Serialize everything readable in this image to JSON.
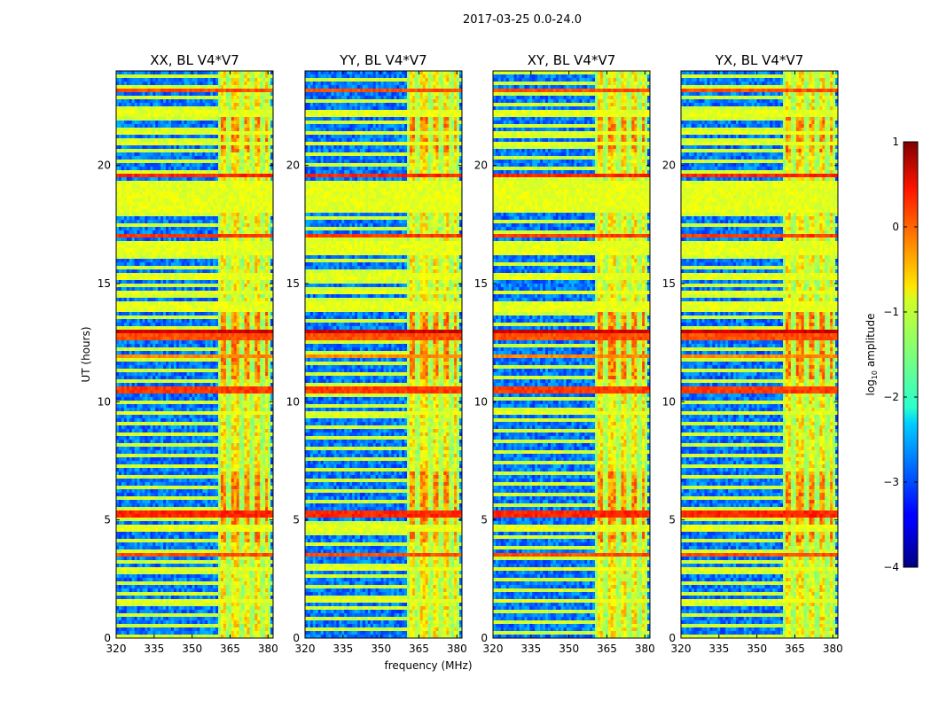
{
  "chart_data": {
    "type": "heatmap",
    "suptitle": "2017-03-25 0.0-24.0",
    "xlabel": "frequency (MHz)",
    "ylabel": "UT (hours)",
    "xlim": [
      320,
      382
    ],
    "ylim": [
      0,
      24
    ],
    "xticks": [
      320,
      335,
      350,
      365,
      380
    ],
    "yticks": [
      0,
      5,
      10,
      15,
      20
    ],
    "colorbar": {
      "label_prefix": "log",
      "label_sub": "10",
      "label_suffix": " amplitude",
      "colormap": "jet",
      "range": [
        -4,
        1
      ],
      "ticks": [
        1,
        0,
        -1,
        -2,
        -3,
        -4
      ],
      "tick_labels": [
        "1",
        "0",
        "−1",
        "−2",
        "−3",
        "−4"
      ]
    },
    "panels": [
      {
        "title": "XX, BL V4*V7"
      },
      {
        "title": "YY, BL V4*V7"
      },
      {
        "title": "XY, BL V4*V7"
      },
      {
        "title": "YX, BL V4*V7"
      }
    ],
    "rfi_band_mhz": [
      360.5,
      380.5
    ],
    "active_channels_mhz": [
      [
        361.5,
        363.8
      ],
      [
        365.5,
        368.5
      ],
      [
        370.2,
        372.8
      ],
      [
        374.6,
        377.0
      ],
      [
        378.6,
        380.2
      ]
    ],
    "broadband_rfi_rows_ut": [
      {
        "t0": 23.1,
        "t1": 23.25,
        "level": 0.0
      },
      {
        "t0": 22.0,
        "t1": 22.4,
        "level": -1.0
      },
      {
        "t0": 21.25,
        "t1": 21.45,
        "level": -1.0
      },
      {
        "t0": 20.85,
        "t1": 21.0,
        "level": -1.0
      },
      {
        "t0": 19.5,
        "t1": 19.7,
        "level": 0.2
      },
      {
        "t0": 18.95,
        "t1": 19.4,
        "level": -1.0
      },
      {
        "t0": 17.95,
        "t1": 18.9,
        "level": -1.0
      },
      {
        "t0": 16.9,
        "t1": 17.05,
        "level": 0.1
      },
      {
        "t0": 16.2,
        "t1": 16.85,
        "level": -1.0
      },
      {
        "t0": 15.2,
        "t1": 15.5,
        "level": -1.0
      },
      {
        "t0": 14.55,
        "t1": 14.65,
        "level": -1.0
      },
      {
        "t0": 13.85,
        "t1": 14.25,
        "level": -1.0
      },
      {
        "t0": 12.9,
        "t1": 13.1,
        "level": 0.6
      },
      {
        "t0": 12.55,
        "t1": 12.85,
        "level": 0.0
      },
      {
        "t0": 11.8,
        "t1": 12.0,
        "level": -0.3
      },
      {
        "t0": 10.4,
        "t1": 10.6,
        "level": 0.1
      },
      {
        "t0": 9.5,
        "t1": 9.6,
        "level": -1.0
      },
      {
        "t0": 5.15,
        "t1": 5.35,
        "level": 0.2
      },
      {
        "t0": 4.45,
        "t1": 4.85,
        "level": -1.0
      },
      {
        "t0": 3.4,
        "t1": 3.6,
        "level": 0.0
      },
      {
        "t0": 2.85,
        "t1": 3.0,
        "level": -1.0
      },
      {
        "t0": 1.5,
        "t1": 1.7,
        "level": -1.0
      }
    ]
  }
}
